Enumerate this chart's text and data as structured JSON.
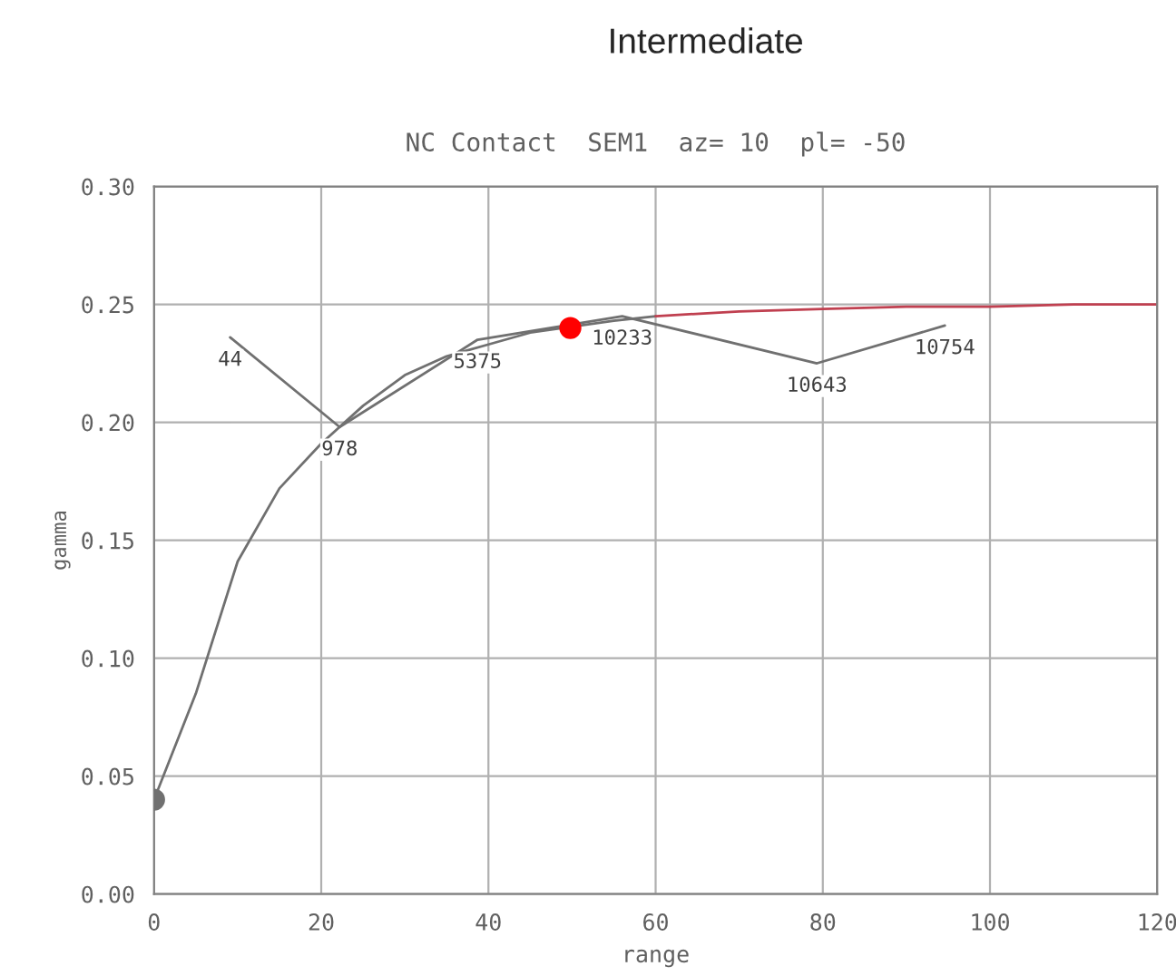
{
  "chart_data": {
    "type": "line",
    "title": "Intermediate",
    "subtitle": "NC Contact  SEM1  az= 10  pl= -50",
    "xlabel": "range",
    "ylabel": "gamma",
    "series": [
      {
        "color": "#707070",
        "x": [
          9.1,
          22.2,
          38.7,
          56,
          79.3,
          94.6
        ],
        "values": [
          0.236,
          0.198,
          0.235,
          0.245,
          0.225,
          0.241
        ],
        "marker": "none"
      },
      {
        "color": "#707070",
        "x": [
          0,
          2,
          5,
          10,
          15,
          20,
          25,
          30,
          35,
          40,
          45,
          55,
          60
        ],
        "values": [
          0.04,
          0.058,
          0.085,
          0.141,
          0.172,
          0.191,
          0.207,
          0.22,
          0.228,
          0.233,
          0.238,
          0.243,
          0.245
        ],
        "marker": "none"
      },
      {
        "color": "#c04050",
        "x": [
          60,
          70,
          80,
          90,
          100,
          110,
          120
        ],
        "values": [
          0.245,
          0.247,
          0.248,
          0.249,
          0.249,
          0.25,
          0.25
        ],
        "marker": "none"
      },
      {
        "type": "scatter",
        "color": "#707070",
        "x": [
          0
        ],
        "values": [
          0.04
        ],
        "marker": "circle"
      },
      {
        "type": "scatter",
        "color": "#ff0000",
        "x": [
          49.8
        ],
        "values": [
          0.24
        ],
        "marker": "circle"
      }
    ],
    "annotations": [
      {
        "text": "44",
        "x": 9.1,
        "y": 0.236
      },
      {
        "text": "978",
        "x": 22.2,
        "y": 0.198
      },
      {
        "text": "5375",
        "x": 38.7,
        "y": 0.235
      },
      {
        "text": "10233",
        "x": 56,
        "y": 0.245
      },
      {
        "text": "10643",
        "x": 79.3,
        "y": 0.225
      },
      {
        "text": "10754",
        "x": 94.6,
        "y": 0.241
      }
    ],
    "xlim": [
      0,
      120
    ],
    "ylim": [
      0,
      0.3
    ],
    "xticks": [
      0,
      20,
      40,
      60,
      80,
      100,
      120
    ],
    "yticks": [
      {
        "value": 0,
        "label": "0.00"
      },
      {
        "value": 0.05,
        "label": "0.05"
      },
      {
        "value": 0.1,
        "label": "0.10"
      },
      {
        "value": 0.15,
        "label": "0.15"
      },
      {
        "value": 0.2,
        "label": "0.20"
      },
      {
        "value": 0.25,
        "label": "0.25"
      },
      {
        "value": 0.3,
        "label": "0.30"
      }
    ],
    "grid": true,
    "legend": false
  }
}
